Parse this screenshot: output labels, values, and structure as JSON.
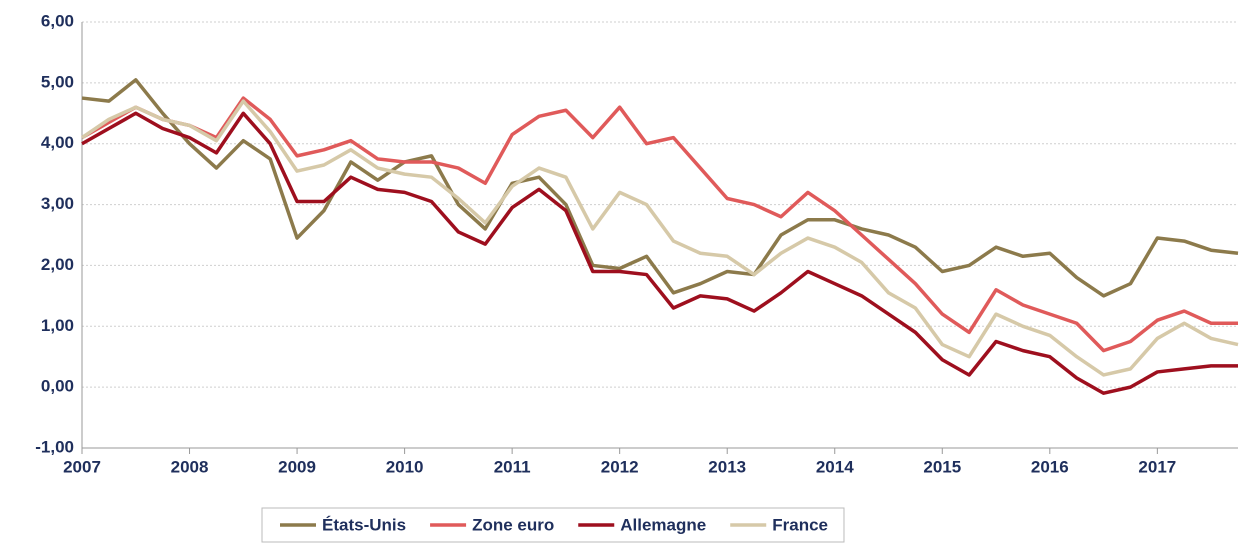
{
  "chart_data": {
    "type": "line",
    "x": [
      2007,
      2007.25,
      2007.5,
      2007.75,
      2008,
      2008.25,
      2008.5,
      2008.75,
      2009,
      2009.25,
      2009.5,
      2009.75,
      2010,
      2010.25,
      2010.5,
      2010.75,
      2011,
      2011.25,
      2011.5,
      2011.75,
      2012,
      2012.25,
      2012.5,
      2012.75,
      2013,
      2013.25,
      2013.5,
      2013.75,
      2014,
      2014.25,
      2014.5,
      2014.75,
      2015,
      2015.25,
      2015.5,
      2015.75,
      2016,
      2016.25,
      2016.5,
      2016.75,
      2017,
      2017.25,
      2017.5,
      2017.75
    ],
    "series": [
      {
        "name": "États-Unis",
        "color": "#8c7a4b",
        "values": [
          4.75,
          4.7,
          5.05,
          4.5,
          4.0,
          3.6,
          4.05,
          3.75,
          2.45,
          2.9,
          3.7,
          3.4,
          3.7,
          3.8,
          3.0,
          2.6,
          3.35,
          3.45,
          3.0,
          2.0,
          1.95,
          2.15,
          1.55,
          1.7,
          1.9,
          1.85,
          2.5,
          2.75,
          2.75,
          2.6,
          2.5,
          2.3,
          1.9,
          2.0,
          2.3,
          2.15,
          2.2,
          1.8,
          1.5,
          1.7,
          2.45,
          2.4,
          2.25,
          2.2
        ]
      },
      {
        "name": "Zone euro",
        "color": "#e05a5a",
        "values": [
          4.1,
          4.35,
          4.6,
          4.4,
          4.3,
          4.1,
          4.75,
          4.4,
          3.8,
          3.9,
          4.05,
          3.75,
          3.7,
          3.7,
          3.6,
          3.35,
          4.15,
          4.45,
          4.55,
          4.1,
          4.6,
          4.0,
          4.1,
          3.6,
          3.1,
          3.0,
          2.8,
          3.2,
          2.9,
          2.5,
          2.1,
          1.7,
          1.2,
          0.9,
          1.6,
          1.35,
          1.2,
          1.05,
          0.6,
          0.75,
          1.1,
          1.25,
          1.05,
          1.05
        ]
      },
      {
        "name": "Allemagne",
        "color": "#9e0f1e",
        "values": [
          4.0,
          4.25,
          4.5,
          4.25,
          4.1,
          3.85,
          4.5,
          4.0,
          3.05,
          3.05,
          3.45,
          3.25,
          3.2,
          3.05,
          2.55,
          2.35,
          2.95,
          3.25,
          2.9,
          1.9,
          1.9,
          1.85,
          1.3,
          1.5,
          1.45,
          1.25,
          1.55,
          1.9,
          1.7,
          1.5,
          1.2,
          0.9,
          0.45,
          0.2,
          0.75,
          0.6,
          0.5,
          0.15,
          -0.1,
          0.0,
          0.25,
          0.3,
          0.35,
          0.35
        ]
      },
      {
        "name": "France",
        "color": "#d6c9a8",
        "values": [
          4.1,
          4.4,
          4.6,
          4.4,
          4.3,
          4.05,
          4.7,
          4.2,
          3.55,
          3.65,
          3.9,
          3.6,
          3.5,
          3.45,
          3.1,
          2.7,
          3.3,
          3.6,
          3.45,
          2.6,
          3.2,
          3.0,
          2.4,
          2.2,
          2.15,
          1.85,
          2.2,
          2.45,
          2.3,
          2.05,
          1.55,
          1.3,
          0.7,
          0.5,
          1.2,
          1.0,
          0.85,
          0.5,
          0.2,
          0.3,
          0.8,
          1.05,
          0.8,
          0.7
        ]
      }
    ],
    "xlim": [
      2007,
      2017.75
    ],
    "xticks": [
      2007,
      2008,
      2009,
      2010,
      2011,
      2012,
      2013,
      2014,
      2015,
      2016,
      2017
    ],
    "ylim": [
      -1,
      6
    ],
    "yticks": [
      {
        "value": -1,
        "label": "-1,00"
      },
      {
        "value": 0,
        "label": "0,00"
      },
      {
        "value": 1,
        "label": "1,00"
      },
      {
        "value": 2,
        "label": "2,00"
      },
      {
        "value": 3,
        "label": "3,00"
      },
      {
        "value": 4,
        "label": "4,00"
      },
      {
        "value": 5,
        "label": "5,00"
      },
      {
        "value": 6,
        "label": "6,00"
      }
    ],
    "grid": true,
    "legend": "bottom"
  }
}
